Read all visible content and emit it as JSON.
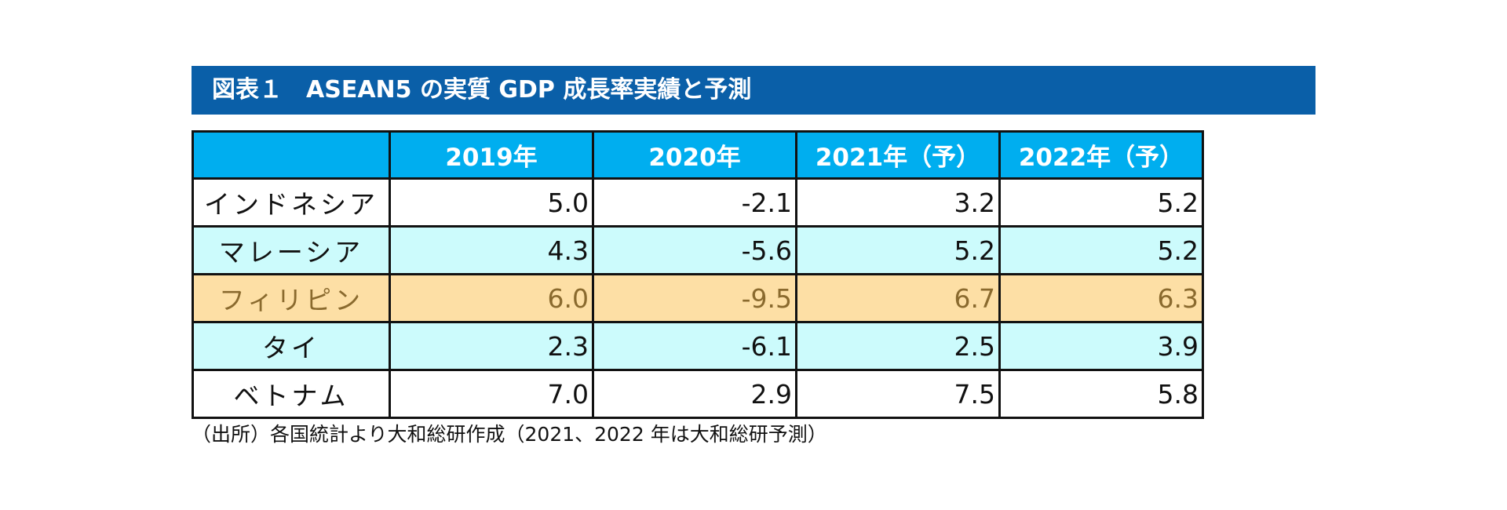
{
  "title": "図表１　ASEAN5 の実質 GDP 成長率実績と予測",
  "table": {
    "headers": [
      "",
      "2019年",
      "2020年",
      "2021年（予）",
      "2022年（予）"
    ],
    "rows": [
      {
        "label": "インドネシア",
        "values": [
          "5.0",
          "-2.1",
          "3.2",
          "5.2"
        ]
      },
      {
        "label": "マレーシア",
        "values": [
          "4.3",
          "-5.6",
          "5.2",
          "5.2"
        ]
      },
      {
        "label": "フィリピン",
        "values": [
          "6.0",
          "-9.5",
          "6.7",
          "6.3"
        ]
      },
      {
        "label": "タイ",
        "values": [
          "2.3",
          "-6.1",
          "2.5",
          "3.9"
        ]
      },
      {
        "label": "ベトナム",
        "values": [
          "7.0",
          "2.9",
          "7.5",
          "5.8"
        ]
      }
    ]
  },
  "source": "（出所）各国統計より大和総研作成（2021、2022 年は大和総研予測）",
  "colors": {
    "title_bg": "#0a5fa8",
    "header_bg": "#00aeef",
    "row_cyan": "#ccfbfc",
    "row_highlight": "#fddfa5"
  }
}
